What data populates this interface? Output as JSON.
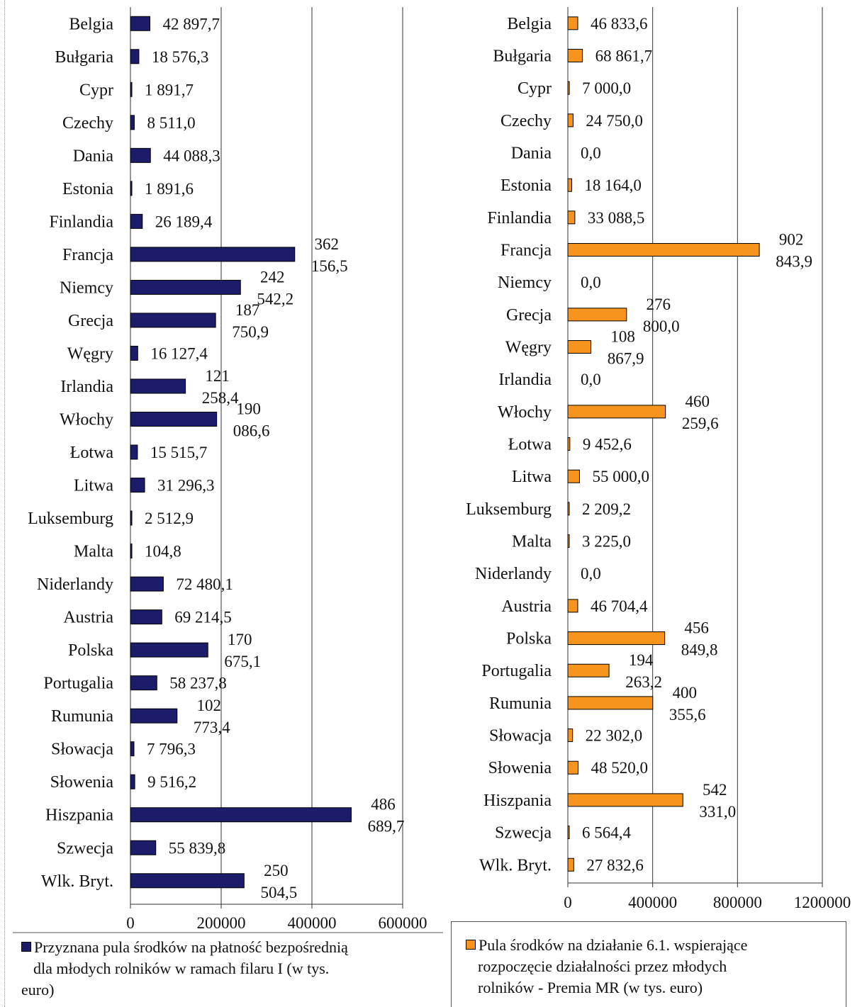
{
  "chart_data": [
    {
      "type": "bar",
      "orientation": "horizontal",
      "categories": [
        "Belgia",
        "Bułgaria",
        "Cypr",
        "Czechy",
        "Dania",
        "Estonia",
        "Finlandia",
        "Francja",
        "Niemcy",
        "Grecja",
        "Węgry",
        "Irlandia",
        "Włochy",
        "Łotwa",
        "Litwa",
        "Luksemburg",
        "Malta",
        "Niderlandy",
        "Austria",
        "Polska",
        "Portugalia",
        "Rumunia",
        "Słowacja",
        "Słowenia",
        "Hiszpania",
        "Szwecja",
        "Wlk. Bryt."
      ],
      "values": [
        42897.7,
        18576.3,
        1891.7,
        8511.0,
        44088.3,
        1891.6,
        26189.4,
        362156.5,
        242542.2,
        187750.9,
        16127.4,
        121258.4,
        190086.6,
        15515.7,
        31296.3,
        2512.9,
        104.8,
        72480.1,
        69214.5,
        170675.1,
        58237.8,
        102773.4,
        7796.3,
        9516.2,
        486689.7,
        55839.8,
        250504.5
      ],
      "data_labels": [
        [
          "42 897,7"
        ],
        [
          "18 576,3"
        ],
        [
          "1 891,7"
        ],
        [
          "8 511,0"
        ],
        [
          "44 088,3"
        ],
        [
          "1 891,6"
        ],
        [
          "26 189,4"
        ],
        [
          "362",
          "156,5"
        ],
        [
          "242",
          "542,2"
        ],
        [
          "187",
          "750,9"
        ],
        [
          "16 127,4"
        ],
        [
          "121",
          "258,4"
        ],
        [
          "190",
          "086,6"
        ],
        [
          "15 515,7"
        ],
        [
          "31 296,3"
        ],
        [
          "2 512,9"
        ],
        [
          "104,8"
        ],
        [
          "72 480,1"
        ],
        [
          "69 214,5"
        ],
        [
          "170",
          "675,1"
        ],
        [
          "58 237,8"
        ],
        [
          "102",
          "773,4"
        ],
        [
          "7 796,3"
        ],
        [
          "9 516,2"
        ],
        [
          "486",
          "689,7"
        ],
        [
          "55 839,8"
        ],
        [
          "250",
          "504,5"
        ]
      ],
      "xlim": [
        0,
        600000
      ],
      "xticks": [
        "0",
        "200000",
        "400000",
        "600000"
      ],
      "grid": true,
      "color": "#1c1c6b",
      "legend_lines": [
        "Przyznana pula środków na płatność bezpośrednią",
        "dla młodych rolników w ramach filaru I (w tys.",
        "euro)"
      ],
      "legend_position": "bottom"
    },
    {
      "type": "bar",
      "orientation": "horizontal",
      "categories": [
        "Belgia",
        "Bułgaria",
        "Cypr",
        "Czechy",
        "Dania",
        "Estonia",
        "Finlandia",
        "Francja",
        "Niemcy",
        "Grecja",
        "Węgry",
        "Irlandia",
        "Włochy",
        "Łotwa",
        "Litwa",
        "Luksemburg",
        "Malta",
        "Niderlandy",
        "Austria",
        "Polska",
        "Portugalia",
        "Rumunia",
        "Słowacja",
        "Słowenia",
        "Hiszpania",
        "Szwecja",
        "Wlk. Bryt."
      ],
      "values": [
        46833.6,
        68861.7,
        7000.0,
        24750.0,
        0.0,
        18164.0,
        33088.5,
        902843.9,
        0.0,
        276800.0,
        108867.9,
        0.0,
        460259.6,
        9452.6,
        55000.0,
        2209.2,
        3225.0,
        0.0,
        46704.4,
        456849.8,
        194263.2,
        400355.6,
        22302.0,
        48520.0,
        542331.0,
        6564.4,
        27832.6
      ],
      "data_labels": [
        [
          "46 833,6"
        ],
        [
          "68 861,7"
        ],
        [
          "7 000,0"
        ],
        [
          "24 750,0"
        ],
        [
          "0,0"
        ],
        [
          "18 164,0"
        ],
        [
          "33 088,5"
        ],
        [
          "902",
          "843,9"
        ],
        [
          "0,0"
        ],
        [
          "276",
          "800,0"
        ],
        [
          "108",
          "867,9"
        ],
        [
          "0,0"
        ],
        [
          "460",
          "259,6"
        ],
        [
          "9 452,6"
        ],
        [
          "55 000,0"
        ],
        [
          "2 209,2"
        ],
        [
          "3 225,0"
        ],
        [
          "0,0"
        ],
        [
          "46 704,4"
        ],
        [
          "456",
          "849,8"
        ],
        [
          "194",
          "263,2"
        ],
        [
          "400",
          "355,6"
        ],
        [
          "22 302,0"
        ],
        [
          "48 520,0"
        ],
        [
          "542",
          "331,0"
        ],
        [
          "6 564,4"
        ],
        [
          "27 832,6"
        ]
      ],
      "xlim": [
        0,
        1200000
      ],
      "xticks": [
        "0",
        "400000",
        "800000",
        "1200000"
      ],
      "grid": true,
      "color": "#f7941d",
      "legend_lines": [
        "Pula środków na działanie 6.1. wspierające",
        "rozpoczęcie działalności przez młodych",
        "rolników - Premia MR (w tys. euro)"
      ],
      "legend_position": "bottom"
    }
  ]
}
